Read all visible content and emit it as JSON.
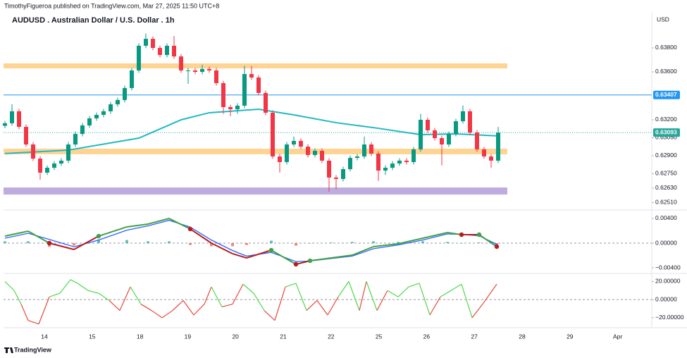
{
  "header": {
    "publisher": "TimothyFigueroa published on TradingView.com, Mar 27, 2025 11:50 UTC+8",
    "brand": "TradingView"
  },
  "chart_data": [
    {
      "type": "candlestick",
      "title": "AUDUSD . Australian Dollar / U.S. Dollar . 1h",
      "y_axis_label": "USD",
      "x": [
        0,
        1,
        2,
        3,
        4,
        5,
        6,
        7,
        8,
        9,
        10,
        11,
        12,
        13,
        14,
        15,
        16,
        17,
        18,
        19,
        20,
        21,
        22,
        23,
        24,
        25,
        26,
        27,
        28,
        29,
        30,
        31,
        32,
        33,
        34,
        35,
        36,
        37,
        38,
        39,
        40,
        41,
        42,
        43,
        44,
        45,
        46,
        47,
        48,
        49,
        50,
        51,
        52,
        53,
        54,
        55,
        56,
        57,
        58,
        59,
        60,
        61,
        62,
        63,
        64,
        65,
        66,
        67,
        68,
        69,
        70
      ],
      "open": [
        0.6315,
        0.63171,
        0.63271,
        0.63141,
        0.62994,
        0.62876,
        0.62759,
        0.628,
        0.62835,
        0.62859,
        0.62994,
        0.63082,
        0.63153,
        0.63212,
        0.63241,
        0.63271,
        0.63329,
        0.63365,
        0.63465,
        0.63612,
        0.63818,
        0.63876,
        0.638,
        0.63741,
        0.63818,
        0.63729,
        0.63612,
        0.63612,
        0.636,
        0.63624,
        0.63612,
        0.63506,
        0.63306,
        0.63288,
        0.63318,
        0.63582,
        0.63553,
        0.63424,
        0.63259,
        0.62894,
        0.62847,
        0.62994,
        0.63024,
        0.62976,
        0.62906,
        0.62941,
        0.62859,
        0.62718,
        0.62706,
        0.62788,
        0.62882,
        0.62894,
        0.62994,
        0.62918,
        0.62776,
        0.628,
        0.62835,
        0.62859,
        0.62847,
        0.62953,
        0.632,
        0.63112,
        0.63047,
        0.62994,
        0.63082,
        0.63188,
        0.63271,
        0.63094,
        0.62953,
        0.62894,
        0.62859
      ],
      "high": [
        0.63191,
        0.6333,
        0.63291,
        0.63161,
        0.63014,
        0.62896,
        0.6282,
        0.62855,
        0.62879,
        0.63014,
        0.63102,
        0.63173,
        0.63232,
        0.63261,
        0.63291,
        0.63349,
        0.63385,
        0.63485,
        0.63632,
        0.63838,
        0.6392,
        0.63896,
        0.6382,
        0.63838,
        0.639,
        0.63749,
        0.63632,
        0.63632,
        0.6366,
        0.63644,
        0.63632,
        0.63526,
        0.63326,
        0.63338,
        0.6365,
        0.6365,
        0.63573,
        0.63444,
        0.63279,
        0.62914,
        0.63014,
        0.6306,
        0.63044,
        0.62996,
        0.62961,
        0.62961,
        0.62879,
        0.62738,
        0.62808,
        0.62902,
        0.62914,
        0.6306,
        0.63014,
        0.62938,
        0.6282,
        0.62855,
        0.62879,
        0.62879,
        0.62973,
        0.6325,
        0.6322,
        0.63132,
        0.63067,
        0.63102,
        0.63208,
        0.6332,
        0.63291,
        0.63114,
        0.62973,
        0.62914,
        0.6314
      ],
      "low": [
        0.6313,
        0.63151,
        0.63121,
        0.62974,
        0.62856,
        0.627,
        0.62739,
        0.6278,
        0.62815,
        0.62839,
        0.62974,
        0.63062,
        0.63133,
        0.63192,
        0.63221,
        0.63251,
        0.63309,
        0.63345,
        0.63445,
        0.63592,
        0.63798,
        0.6378,
        0.63721,
        0.63721,
        0.63709,
        0.63592,
        0.635,
        0.6358,
        0.6358,
        0.63592,
        0.63486,
        0.6325,
        0.6323,
        0.6325,
        0.63298,
        0.63533,
        0.63404,
        0.63239,
        0.62874,
        0.6276,
        0.62827,
        0.62974,
        0.62956,
        0.62886,
        0.62886,
        0.62839,
        0.626,
        0.6262,
        0.62686,
        0.62768,
        0.62862,
        0.62874,
        0.62898,
        0.6269,
        0.6274,
        0.6278,
        0.62815,
        0.62827,
        0.62827,
        0.62933,
        0.63092,
        0.63027,
        0.6282,
        0.62974,
        0.63062,
        0.63168,
        0.63074,
        0.62933,
        0.62874,
        0.628,
        0.62839
      ],
      "close": [
        0.63171,
        0.63271,
        0.63141,
        0.62994,
        0.62876,
        0.62759,
        0.628,
        0.62835,
        0.62859,
        0.62994,
        0.63082,
        0.63153,
        0.63212,
        0.63241,
        0.63271,
        0.63329,
        0.63365,
        0.63465,
        0.63612,
        0.63818,
        0.63876,
        0.638,
        0.63741,
        0.63818,
        0.63729,
        0.63612,
        0.63612,
        0.636,
        0.63624,
        0.63612,
        0.63506,
        0.63306,
        0.63288,
        0.63318,
        0.63582,
        0.63553,
        0.63424,
        0.63259,
        0.62894,
        0.62847,
        0.62994,
        0.63024,
        0.62976,
        0.62906,
        0.62941,
        0.62859,
        0.62718,
        0.62706,
        0.62788,
        0.62882,
        0.62894,
        0.62994,
        0.62918,
        0.62776,
        0.628,
        0.62835,
        0.62859,
        0.62847,
        0.62953,
        0.632,
        0.63112,
        0.63047,
        0.62994,
        0.63082,
        0.63188,
        0.63271,
        0.63094,
        0.62953,
        0.62894,
        0.62859,
        0.63093
      ],
      "up_color": "#089981",
      "down_color": "#f23645",
      "xlim": [
        -0.2,
        91.8
      ],
      "xticks": [
        {
          "value": 5.6,
          "label": "14"
        },
        {
          "value": 12.38,
          "label": "15"
        },
        {
          "value": 19.16,
          "label": "18"
        },
        {
          "value": 25.94,
          "label": "19"
        },
        {
          "value": 32.72,
          "label": "20"
        },
        {
          "value": 39.5,
          "label": "21"
        },
        {
          "value": 46.28,
          "label": "22"
        },
        {
          "value": 53.06,
          "label": "25"
        },
        {
          "value": 59.84,
          "label": "26"
        },
        {
          "value": 66.62,
          "label": "27"
        },
        {
          "value": 73.4,
          "label": "28"
        },
        {
          "value": 80.18,
          "label": "29"
        },
        {
          "value": 86.96,
          "label": "Apr"
        }
      ],
      "ylim": [
        0.62447,
        0.64094
      ],
      "yticks": [
        {
          "value": 0.638,
          "label": "0.63800"
        },
        {
          "value": 0.636,
          "label": "0.63600"
        },
        {
          "value": 0.632,
          "label": "0.63200"
        },
        {
          "value": 0.6305,
          "label": "0.63050"
        },
        {
          "value": 0.629,
          "label": "0.62900"
        },
        {
          "value": 0.6275,
          "label": "0.62750"
        },
        {
          "value": 0.6263,
          "label": "0.62630"
        },
        {
          "value": 0.6251,
          "label": "0.62510"
        }
      ],
      "moving_average": {
        "color": "#22b8c4",
        "x": [
          0,
          9,
          19,
          25,
          29,
          36,
          41,
          47,
          53,
          59,
          64,
          70
        ],
        "values": [
          0.62918,
          0.62947,
          0.63047,
          0.632,
          0.63259,
          0.63288,
          0.63241,
          0.63176,
          0.63129,
          0.63076,
          0.63082,
          0.63065
        ]
      },
      "zones": [
        {
          "xrange": [
            -0.2,
            71.3
          ],
          "y1": 0.63629,
          "y2": 0.63671,
          "color": "#ffcc80"
        },
        {
          "xrange": [
            -0.2,
            71.3
          ],
          "y1": 0.62912,
          "y2": 0.62959,
          "color": "#ffcc80"
        },
        {
          "xrange": [
            -0.2,
            71.3
          ],
          "y1": 0.62576,
          "y2": 0.62635,
          "color": "#b39ddb"
        }
      ],
      "price_lines": [
        {
          "value": 0.63407,
          "label": "0.63407",
          "color": "#2196f3"
        },
        {
          "value": 0.63093,
          "label": "0.63093",
          "color": "#26a69a"
        }
      ]
    },
    {
      "type": "macd",
      "x": [
        0,
        3.3,
        6.3,
        9.8,
        13.3,
        17.3,
        20.3,
        23.3,
        26.3,
        29.3,
        32.3,
        34.3,
        37.8,
        41.3,
        43.3,
        46.3,
        49.3,
        52.3,
        55.8,
        59.3,
        62.8,
        64.8,
        67.3,
        69.8
      ],
      "macd": [
        0.00114,
        0.00194,
        0,
        -0.00103,
        0.00114,
        0.00263,
        0.00309,
        0.004,
        0.00229,
        0,
        -0.00171,
        -0.0024,
        -0.00114,
        -0.00343,
        -0.00286,
        -0.0024,
        -0.00194,
        -0.00057,
        -0.00011,
        0.0008,
        0.00171,
        0.00137,
        0.00137,
        -0.00057
      ],
      "signal": [
        0.0008,
        0.0016,
        0.0006,
        -0.0006,
        0.0005,
        0.0021,
        0.0028,
        0.0037,
        0.0026,
        0.0005,
        -0.0012,
        -0.0021,
        -0.0015,
        -0.003,
        -0.0029,
        -0.0025,
        -0.0021,
        -0.0009,
        -0.0003,
        0.0005,
        0.0015,
        0.0014,
        0.0012,
        -0.0002
      ],
      "histogram": [
        0.0003,
        0.0003,
        -0.0006,
        -0.0004,
        0.0006,
        0.0005,
        0.0003,
        0.0003,
        -0.0003,
        -0.0005,
        -0.0005,
        -0.0003,
        0.0004,
        -0.0004,
        0,
        0.0001,
        0.0002,
        0.0003,
        0.0002,
        0.0003,
        0.0002,
        0,
        0.0001,
        -0.0004
      ],
      "macd_colors": [
        "#43a047",
        "#b71c1c"
      ],
      "signal_color": "#2962ff",
      "hist_colors": [
        "#26a69a",
        "#ef5350"
      ],
      "ylim": [
        -0.00491,
        0.00514
      ],
      "yticks": [
        {
          "value": 0.004,
          "label": "0.00400"
        },
        {
          "value": 0,
          "label": "0.00000"
        },
        {
          "value": -0.004,
          "label": "−0.00400"
        }
      ],
      "zero_line": true
    },
    {
      "type": "oscillator",
      "x": [
        0,
        1.3,
        2.3,
        3.3,
        4.8,
        6.3,
        7.8,
        9.3,
        10.3,
        11.8,
        13.3,
        14.8,
        16.3,
        17.8,
        19.3,
        20.8,
        22.3,
        23.8,
        25.3,
        26.8,
        28.3,
        29.3,
        30.8,
        32.3,
        33.8,
        35.3,
        36.8,
        38.3,
        39.8,
        41.3,
        42.8,
        44.3,
        45.8,
        47.3,
        48.8,
        50.3,
        51.3,
        52.8,
        54.3,
        55.8,
        57.3,
        58.8,
        60.3,
        61.8,
        63.3,
        64.8,
        66.3,
        67.8,
        69.8
      ],
      "values": [
        20,
        10,
        -5,
        -23,
        -27,
        3,
        7,
        22,
        18,
        10,
        7,
        -1,
        -12,
        14,
        -5,
        -12,
        -20,
        -12,
        -1,
        -17,
        -5,
        14,
        -8,
        -5,
        17,
        7,
        -12,
        -23,
        14,
        18,
        -12,
        -1,
        -17,
        3,
        20,
        -12,
        20,
        -12,
        10,
        3,
        14,
        18,
        -17,
        3,
        10,
        17,
        -20,
        -5,
        17
      ],
      "up_color": "#4cd94c",
      "down_color": "#e8473b",
      "ylim": [
        -31,
        27.3
      ],
      "yticks": [
        {
          "value": 20,
          "label": "20.00000"
        },
        {
          "value": 0,
          "label": "0.00000"
        },
        {
          "value": -20,
          "label": "−20.00000"
        }
      ],
      "zero_line": true
    }
  ]
}
